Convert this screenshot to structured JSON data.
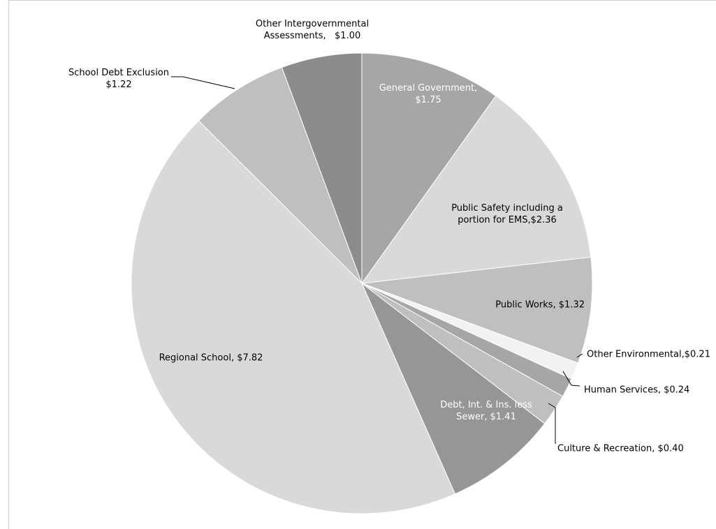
{
  "chart_data": {
    "type": "pie",
    "title": "",
    "slices": [
      {
        "label": "General Government,\n$1.75",
        "value": 1.75,
        "color": "#a6a6a6",
        "text_color": "#ffffff"
      },
      {
        "label": "Public Safety including a\nportion for EMS,$2.36",
        "value": 2.36,
        "color": "#d9d9d9",
        "text_color": "#000000"
      },
      {
        "label": "Public Works, $1.32",
        "value": 1.32,
        "color": "#bfbfbf",
        "text_color": "#000000"
      },
      {
        "label": "Other Environmental,$0.21",
        "value": 0.21,
        "color": "#f2f2f2",
        "text_color": "#000000"
      },
      {
        "label": "Human Services, $0.24",
        "value": 0.24,
        "color": "#a6a6a6",
        "text_color": "#000000"
      },
      {
        "label": "Culture & Recreation, $0.40",
        "value": 0.4,
        "color": "#bfbfbf",
        "text_color": "#000000"
      },
      {
        "label": "Debt, Int. & Ins. less\nSewer, $1.41",
        "value": 1.41,
        "color": "#969696",
        "text_color": "#ffffff"
      },
      {
        "label": "Regional School, $7.82",
        "value": 7.82,
        "color": "#d9d9d9",
        "text_color": "#000000"
      },
      {
        "label": "School Debt Exclusion\n$1.22",
        "value": 1.22,
        "color": "#bfbfbf",
        "text_color": "#000000"
      },
      {
        "label": "Other Intergovernmental\nAssessments,   $1.00",
        "value": 1.0,
        "color": "#8c8c8c",
        "text_color": "#000000"
      }
    ]
  }
}
